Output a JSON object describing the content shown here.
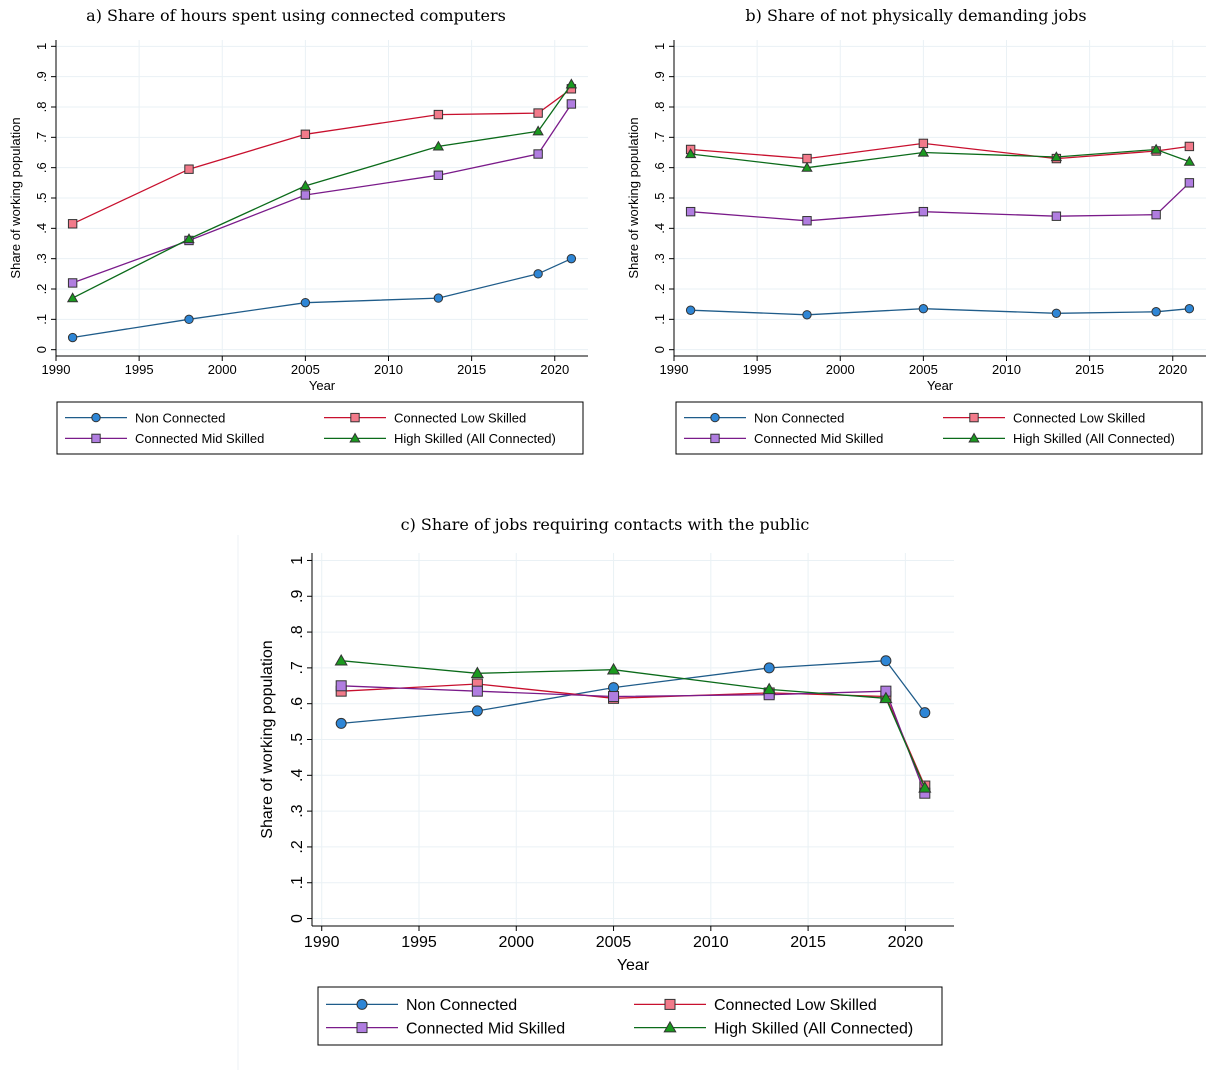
{
  "colors": {
    "non_connected": "#1f5c8a",
    "non_connected_marker": "#2e86d6",
    "low_skilled": "#c8102e",
    "low_skilled_marker": "#f27a8a",
    "mid_skilled": "#7a1b8a",
    "mid_skilled_marker": "#b07de0",
    "high_skilled": "#0b6b1a",
    "high_skilled_marker": "#1a9a1f",
    "grid": "#eaf1f5"
  },
  "chart_data": [
    {
      "id": "a",
      "type": "line",
      "title": "a) Share of hours spent using connected computers",
      "xlabel": "Year",
      "ylabel": "Share of working population",
      "xlim": [
        1990,
        2022
      ],
      "ylim": [
        0,
        1
      ],
      "xticks": [
        "1990",
        "1995",
        "2000",
        "2005",
        "2010",
        "2015",
        "2020"
      ],
      "yticks": [
        "0",
        ".1",
        ".2",
        ".3",
        ".4",
        ".5",
        ".6",
        ".7",
        ".8",
        ".9",
        "1"
      ],
      "grid": true,
      "legend": "bottom",
      "x": [
        1991,
        1998,
        2005,
        2013,
        2019,
        2021
      ],
      "series": [
        {
          "name": "Non Connected",
          "marker": "circle",
          "values": [
            0.04,
            0.1,
            0.155,
            0.17,
            0.25,
            0.3
          ]
        },
        {
          "name": "Connected Low Skilled",
          "marker": "square",
          "values": [
            0.415,
            0.595,
            0.71,
            0.775,
            0.78,
            0.86
          ]
        },
        {
          "name": "Connected Mid Skilled",
          "marker": "square",
          "values": [
            0.22,
            0.36,
            0.51,
            0.575,
            0.645,
            0.81
          ]
        },
        {
          "name": "High Skilled (All Connected)",
          "marker": "triangle",
          "values": [
            0.17,
            0.365,
            0.54,
            0.67,
            0.72,
            0.875
          ]
        }
      ]
    },
    {
      "id": "b",
      "type": "line",
      "title": "b) Share of not physically demanding jobs",
      "xlabel": "Year",
      "ylabel": "Share of working population",
      "xlim": [
        1990,
        2022
      ],
      "ylim": [
        0,
        1
      ],
      "xticks": [
        "1990",
        "1995",
        "2000",
        "2005",
        "2010",
        "2015",
        "2020"
      ],
      "yticks": [
        "0",
        ".1",
        ".2",
        ".3",
        ".4",
        ".5",
        ".6",
        ".7",
        ".8",
        ".9",
        "1"
      ],
      "grid": true,
      "legend": "bottom",
      "x": [
        1991,
        1998,
        2005,
        2013,
        2019,
        2021
      ],
      "series": [
        {
          "name": "Non Connected",
          "marker": "circle",
          "values": [
            0.13,
            0.115,
            0.135,
            0.12,
            0.125,
            0.135
          ]
        },
        {
          "name": "Connected Low Skilled",
          "marker": "square",
          "values": [
            0.66,
            0.63,
            0.68,
            0.63,
            0.655,
            0.67
          ]
        },
        {
          "name": "Connected Mid Skilled",
          "marker": "square",
          "values": [
            0.455,
            0.425,
            0.455,
            0.44,
            0.445,
            0.55
          ]
        },
        {
          "name": "High Skilled (All Connected)",
          "marker": "triangle",
          "values": [
            0.645,
            0.6,
            0.65,
            0.635,
            0.66,
            0.62
          ]
        }
      ]
    },
    {
      "id": "c",
      "type": "line",
      "title": "c) Share of jobs requiring contacts with the public",
      "xlabel": "Year",
      "ylabel": "Share of working population",
      "xlim": [
        1989.5,
        2022.5
      ],
      "ylim": [
        0,
        1
      ],
      "xticks": [
        "1990",
        "1995",
        "2000",
        "2005",
        "2010",
        "2015",
        "2020"
      ],
      "yticks": [
        "0",
        ".1",
        ".2",
        ".3",
        ".4",
        ".5",
        ".6",
        ".7",
        ".8",
        ".9",
        "1"
      ],
      "grid": true,
      "legend": "bottom",
      "x": [
        1991,
        1998,
        2005,
        2013,
        2019,
        2021
      ],
      "series": [
        {
          "name": "Non Connected",
          "marker": "circle",
          "values": [
            0.545,
            0.58,
            0.645,
            0.7,
            0.72,
            0.575
          ]
        },
        {
          "name": "Connected Low Skilled",
          "marker": "square",
          "values": [
            0.635,
            0.655,
            0.615,
            0.63,
            0.62,
            0.37
          ]
        },
        {
          "name": "Connected Mid Skilled",
          "marker": "square",
          "values": [
            0.65,
            0.635,
            0.62,
            0.625,
            0.635,
            0.35
          ]
        },
        {
          "name": "High Skilled (All Connected)",
          "marker": "triangle",
          "values": [
            0.72,
            0.685,
            0.695,
            0.64,
            0.615,
            0.365
          ]
        }
      ]
    }
  ]
}
